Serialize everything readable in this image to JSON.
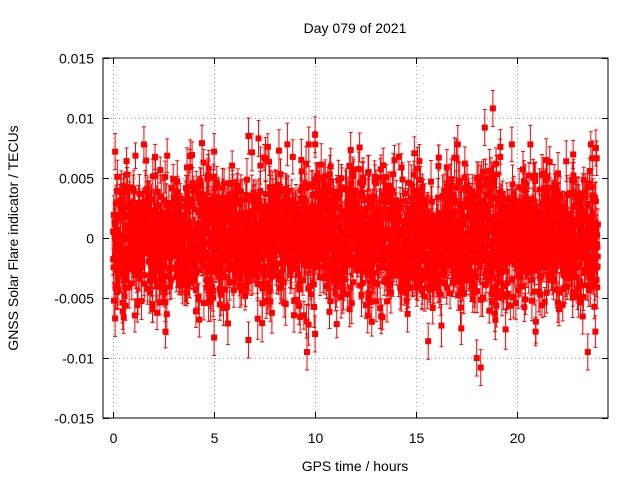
{
  "chart_data": {
    "type": "scatter",
    "title": "Day 079 of 2021",
    "xlabel": "GPS time / hours",
    "ylabel": "GNSS Solar Flare indicator / TECUs",
    "xlim": [
      -0.5,
      24.5
    ],
    "ylim": [
      -0.015,
      0.015
    ],
    "xticks": [
      0,
      5,
      10,
      15,
      20
    ],
    "xtick_labels": [
      "0",
      "5",
      "10",
      "15",
      "20"
    ],
    "yticks": [
      -0.015,
      -0.01,
      -0.005,
      0,
      0.005,
      0.01,
      0.015
    ],
    "ytick_labels": [
      "-0.015",
      "-0.01",
      "-0.005",
      "0",
      "0.005",
      "0.01",
      "0.015"
    ],
    "grid": true,
    "series": [
      {
        "marker": "square",
        "color": "#ff0000",
        "error_bars": true,
        "notable_points": [
          {
            "x": 0.1,
            "y": 0.0072
          },
          {
            "x": 0.1,
            "y": -0.0067
          },
          {
            "x": 4.4,
            "y": 0.0079
          },
          {
            "x": 5.0,
            "y": 0.0072
          },
          {
            "x": 5.0,
            "y": -0.0083
          },
          {
            "x": 6.7,
            "y": 0.0085
          },
          {
            "x": 6.7,
            "y": -0.0085
          },
          {
            "x": 7.2,
            "y": 0.0083
          },
          {
            "x": 9.6,
            "y": -0.0095
          },
          {
            "x": 10.0,
            "y": 0.0086
          },
          {
            "x": 10.0,
            "y": -0.008
          },
          {
            "x": 15.6,
            "y": -0.0086
          },
          {
            "x": 18.0,
            "y": -0.01
          },
          {
            "x": 18.2,
            "y": -0.0108
          },
          {
            "x": 18.4,
            "y": 0.0092
          },
          {
            "x": 18.8,
            "y": 0.0108
          },
          {
            "x": 18.9,
            "y": -0.0063
          },
          {
            "x": 23.5,
            "y": -0.0095
          },
          {
            "x": 23.9,
            "y": 0.0075
          }
        ]
      }
    ]
  }
}
